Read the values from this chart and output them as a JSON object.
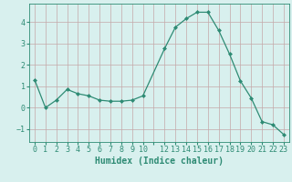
{
  "x": [
    0,
    1,
    2,
    3,
    4,
    5,
    6,
    7,
    8,
    9,
    10,
    12,
    13,
    14,
    15,
    16,
    17,
    18,
    19,
    20,
    21,
    22,
    23
  ],
  "y": [
    1.3,
    0.0,
    0.35,
    0.85,
    0.65,
    0.55,
    0.35,
    0.3,
    0.3,
    0.35,
    0.55,
    2.75,
    3.75,
    4.15,
    4.45,
    4.45,
    3.6,
    2.5,
    1.25,
    0.45,
    -0.65,
    -0.8,
    -1.25
  ],
  "line_color": "#2e8b74",
  "marker": "D",
  "marker_size": 2.0,
  "bg_color": "#d8f0ee",
  "grid_color": "#c4a8a8",
  "xlabel": "Humidex (Indice chaleur)",
  "xlim": [
    -0.5,
    23.5
  ],
  "ylim": [
    -1.6,
    4.85
  ],
  "yticks": [
    -1,
    0,
    1,
    2,
    3,
    4
  ],
  "xtick_labels": [
    "0",
    "1",
    "2",
    "3",
    "4",
    "5",
    "6",
    "7",
    "8",
    "9",
    "10",
    "",
    "12",
    "13",
    "14",
    "15",
    "16",
    "17",
    "18",
    "19",
    "20",
    "21",
    "22",
    "23"
  ],
  "axis_color": "#2e8b74",
  "tick_color": "#2e8b74",
  "label_fontsize": 7,
  "tick_fontsize": 6
}
